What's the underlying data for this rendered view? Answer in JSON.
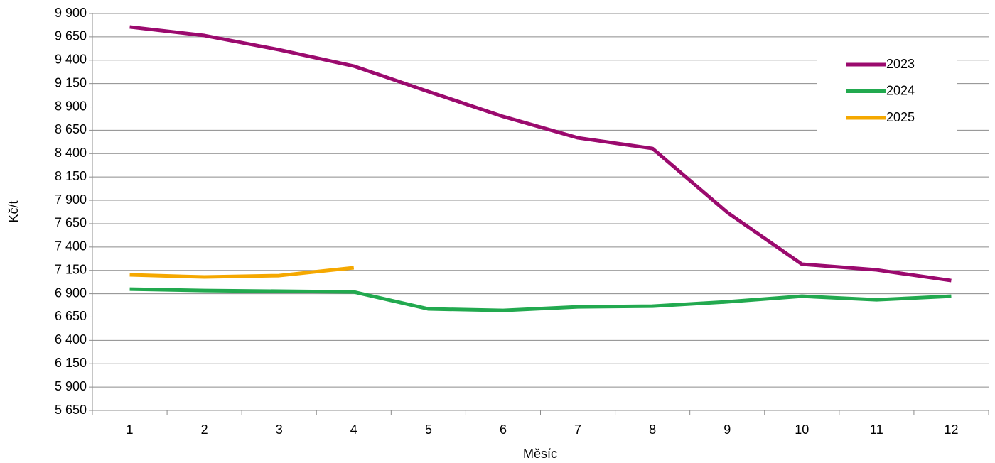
{
  "chart_data": {
    "type": "line",
    "categories": [
      1,
      2,
      3,
      4,
      5,
      6,
      7,
      8,
      9,
      10,
      11,
      12
    ],
    "series": [
      {
        "name": "2023",
        "color": "#9b0a6e",
        "values": [
          9756,
          9664,
          9512,
          9337,
          9064,
          8797,
          8569,
          8455,
          7771,
          7216,
          7155,
          7041
        ]
      },
      {
        "name": "2024",
        "color": "#22a94f",
        "values": [
          6949,
          6934,
          6927,
          6919,
          6737,
          6721,
          6759,
          6767,
          6813,
          6873,
          6835,
          6873
        ]
      },
      {
        "name": "2025",
        "color": "#f5a800",
        "values": [
          7102,
          7079,
          7094,
          7178,
          null,
          null,
          null,
          null,
          null,
          null,
          null,
          null
        ]
      }
    ],
    "ylim": [
      5650,
      9900
    ],
    "yticks": [
      {
        "value": 5650,
        "label": "5 650"
      },
      {
        "value": 5900,
        "label": "5 900"
      },
      {
        "value": 6150,
        "label": "6 150"
      },
      {
        "value": 6400,
        "label": "6 400"
      },
      {
        "value": 6650,
        "label": "6 650"
      },
      {
        "value": 6900,
        "label": "6 900"
      },
      {
        "value": 7150,
        "label": "7 150"
      },
      {
        "value": 7400,
        "label": "7 400"
      },
      {
        "value": 7650,
        "label": "7 650"
      },
      {
        "value": 7900,
        "label": "7 900"
      },
      {
        "value": 8150,
        "label": "8 150"
      },
      {
        "value": 8400,
        "label": "8 400"
      },
      {
        "value": 8650,
        "label": "8 650"
      },
      {
        "value": 8900,
        "label": "8 900"
      },
      {
        "value": 9150,
        "label": "9 150"
      },
      {
        "value": 9400,
        "label": "9 400"
      },
      {
        "value": 9650,
        "label": "9 650"
      },
      {
        "value": 9900,
        "label": "9 900"
      }
    ],
    "ylabel": "Kč/t",
    "xlabel": "Měsíc",
    "grid": true,
    "legend": "upper right"
  }
}
